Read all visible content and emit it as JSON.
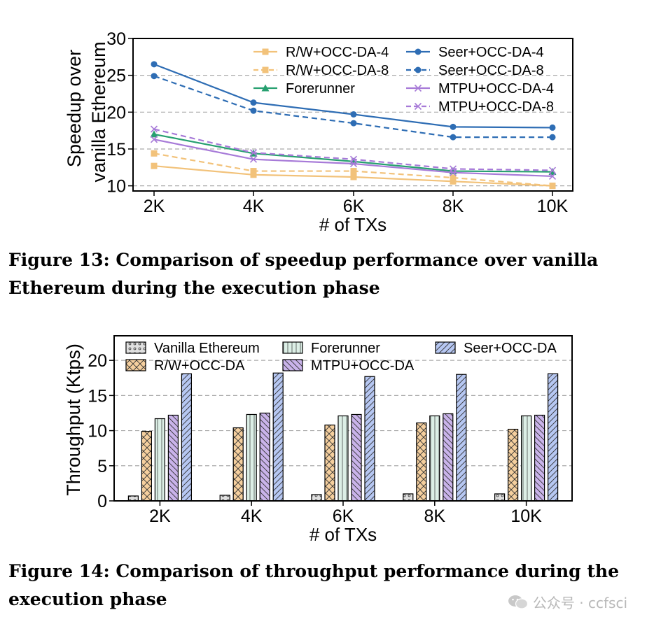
{
  "chart_data": [
    {
      "type": "line",
      "xlabel": "# of TXs",
      "ylabel": "Speedup over vanilla Ethereum",
      "ylabel_lines": [
        "Speedup over",
        "vanilla Ethereum"
      ],
      "categories": [
        "2K",
        "4K",
        "6K",
        "8K",
        "10K"
      ],
      "ylim": [
        9.3,
        30
      ],
      "yticks": [
        10,
        15,
        20,
        25,
        30
      ],
      "ytick_labels": [
        "10",
        "15",
        "20",
        "25",
        "30"
      ],
      "grid": "horizontal dashed",
      "legend_position": "top-right",
      "series": [
        {
          "name": "R/W+OCC-DA-4",
          "color": "#f2c27a",
          "dash": "solid",
          "marker": "square",
          "values": [
            12.7,
            11.5,
            11.2,
            10.6,
            10.0
          ]
        },
        {
          "name": "R/W+OCC-DA-8",
          "color": "#f2c27a",
          "dash": "dashed",
          "marker": "square",
          "values": [
            14.4,
            12.0,
            12.0,
            11.1,
            10.0
          ]
        },
        {
          "name": "Forerunner",
          "color": "#27a070",
          "dash": "solid",
          "marker": "triangle",
          "values": [
            17.0,
            14.4,
            13.3,
            12.0,
            11.9
          ]
        },
        {
          "name": "Seer+OCC-DA-4",
          "color": "#2e6db4",
          "dash": "solid",
          "marker": "circle",
          "values": [
            26.5,
            21.3,
            19.7,
            18.0,
            17.9
          ]
        },
        {
          "name": "Seer+OCC-DA-8",
          "color": "#2e6db4",
          "dash": "dashed",
          "marker": "circle",
          "values": [
            24.9,
            20.2,
            18.5,
            16.6,
            16.6
          ]
        },
        {
          "name": "MTPU+OCC-DA-4",
          "color": "#a77ad8",
          "dash": "solid",
          "marker": "x",
          "values": [
            16.3,
            13.6,
            13.0,
            11.8,
            11.3
          ]
        },
        {
          "name": "MTPU+OCC-DA-8",
          "color": "#a77ad8",
          "dash": "dashed",
          "marker": "x",
          "values": [
            17.7,
            14.5,
            13.6,
            12.3,
            12.1
          ]
        }
      ]
    },
    {
      "type": "bar",
      "xlabel": "# of TXs",
      "ylabel": "Throughput (Ktps)",
      "categories": [
        "2K",
        "4K",
        "6K",
        "8K",
        "10K"
      ],
      "ylim": [
        0,
        23.5
      ],
      "yticks": [
        0,
        5,
        10,
        15,
        20
      ],
      "ytick_labels": [
        "0",
        "5",
        "10",
        "15",
        "20"
      ],
      "grid": "horizontal dashed",
      "legend_position": "top",
      "series": [
        {
          "name": "Vanilla Ethereum",
          "color": "#e0e0e0",
          "hatch": "dots",
          "values": [
            0.7,
            0.8,
            0.9,
            1.0,
            1.0
          ]
        },
        {
          "name": "R/W+OCC-DA",
          "color": "#f5cf9e",
          "hatch": "crosshatch",
          "values": [
            9.9,
            10.4,
            10.8,
            11.1,
            10.2
          ]
        },
        {
          "name": "Forerunner",
          "color": "#dcefe6",
          "hatch": "vertical",
          "values": [
            11.7,
            12.3,
            12.1,
            12.1,
            12.1
          ]
        },
        {
          "name": "MTPU+OCC-DA",
          "color": "#c9b3ea",
          "hatch": "backslash",
          "values": [
            12.2,
            12.5,
            12.3,
            12.4,
            12.2
          ]
        },
        {
          "name": "Seer+OCC-DA",
          "color": "#b6c7f2",
          "hatch": "slash",
          "values": [
            18.1,
            18.2,
            17.7,
            18.0,
            18.1
          ]
        }
      ]
    }
  ],
  "captions": {
    "fig13": "Figure 13: Comparison of speedup performance over vanilla Ethereum during the execution phase",
    "fig14": "Figure 14: Comparison of throughput performance during the execution phase"
  },
  "watermark": {
    "text": "公众号 · ccfsci",
    "icon": "wechat-icon"
  }
}
